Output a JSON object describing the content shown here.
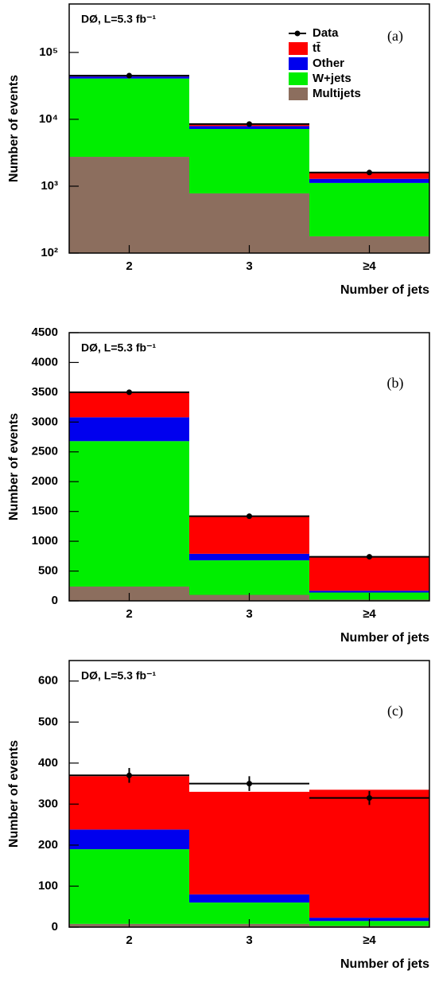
{
  "chart_data": [
    {
      "type": "bar",
      "stacked": true,
      "log_scale": true,
      "annotation": "DØ, L=5.3 fb⁻¹",
      "panel_label": "(a)",
      "x_label": "Number of jets",
      "y_label": "Number of events",
      "categories": [
        "2",
        "3",
        "≥4"
      ],
      "ylim": [
        100,
        530000
      ],
      "yticks": [
        {
          "value": 100,
          "label": "10²"
        },
        {
          "value": 1000,
          "label": "10³"
        },
        {
          "value": 10000,
          "label": "10⁴"
        },
        {
          "value": 100000,
          "label": "10⁵"
        }
      ],
      "legend": "upper right",
      "series": [
        {
          "name": "Multijets",
          "color": "#8c6e5e",
          "values": [
            2750,
            780,
            178
          ]
        },
        {
          "name": "W+jets",
          "color": "#00ee00",
          "values": [
            38000,
            6400,
            940
          ]
        },
        {
          "name": "Other",
          "color": "#0000ee",
          "values": [
            2900,
            750,
            170
          ]
        },
        {
          "name": "tt̄",
          "color": "#ff0000",
          "values": [
            400,
            550,
            340
          ]
        }
      ],
      "data": {
        "name": "Data",
        "color": "#000000",
        "values": [
          45000,
          8500,
          1600
        ]
      }
    },
    {
      "type": "bar",
      "stacked": true,
      "log_scale": false,
      "annotation": "DØ, L=5.3 fb⁻¹",
      "panel_label": "(b)",
      "x_label": "Number of jets",
      "y_label": "Number of events",
      "categories": [
        "2",
        "3",
        "≥4"
      ],
      "ylim": [
        0,
        4500
      ],
      "yticks": [
        0,
        500,
        1000,
        1500,
        2000,
        2500,
        3000,
        3500,
        4000,
        4500
      ],
      "series": [
        {
          "color": "#8c6e5e",
          "values": [
            240,
            100,
            20
          ]
        },
        {
          "color": "#00ee00",
          "values": [
            2440,
            580,
            120
          ]
        },
        {
          "color": "#0000ee",
          "values": [
            400,
            110,
            30
          ]
        },
        {
          "color": "#ff0000",
          "values": [
            420,
            630,
            570
          ]
        }
      ],
      "data": {
        "color": "#000000",
        "values": [
          3500,
          1420,
          740
        ]
      }
    },
    {
      "type": "bar",
      "stacked": true,
      "log_scale": false,
      "annotation": "DØ, L=5.3 fb⁻¹",
      "panel_label": "(c)",
      "x_label": "Number of jets",
      "y_label": "Number of events",
      "categories": [
        "2",
        "3",
        "≥4"
      ],
      "ylim": [
        0,
        650
      ],
      "yticks": [
        0,
        100,
        200,
        300,
        400,
        500,
        600
      ],
      "series": [
        {
          "color": "#8c6e5e",
          "values": [
            8,
            8,
            3
          ]
        },
        {
          "color": "#00ee00",
          "values": [
            182,
            52,
            12
          ]
        },
        {
          "color": "#0000ee",
          "values": [
            48,
            20,
            8
          ]
        },
        {
          "color": "#ff0000",
          "values": [
            130,
            250,
            312
          ]
        }
      ],
      "data": {
        "color": "#000000",
        "values": [
          370,
          350,
          315
        ],
        "errors": [
          18,
          18,
          17
        ]
      }
    }
  ]
}
